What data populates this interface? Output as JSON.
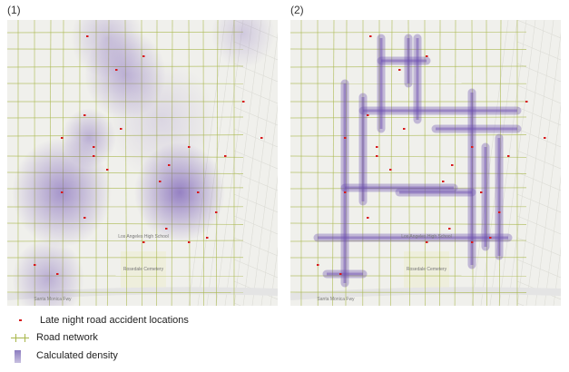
{
  "panels": [
    {
      "label": "(1)",
      "mode": "kernel"
    },
    {
      "label": "(2)",
      "mode": "network"
    }
  ],
  "map_labels": {
    "cemetery": "Rosedale Cemetery",
    "school": "Los Angeles High School",
    "freeway": "Santa Monica Fwy"
  },
  "legend": {
    "accidents": "Late night road accident locations",
    "roads": "Road network",
    "density": "Calculated density"
  },
  "colors": {
    "accident": "#d7191c",
    "road": "#a8b64a",
    "density": "#6a4caf",
    "basemap": "#f0f0ec"
  }
}
